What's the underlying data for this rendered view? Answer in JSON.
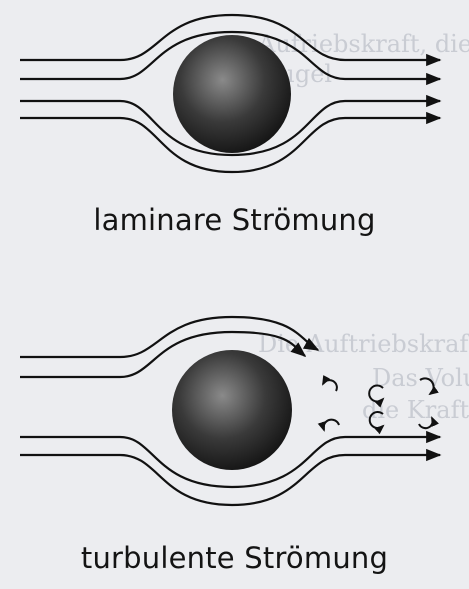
{
  "captions": {
    "laminar": "laminare Strömung",
    "turbulent": "turbulente Strömung"
  },
  "colors": {
    "background": "#ecedf0",
    "ink": "#111111",
    "sphere_highlight": "#8a8a8a",
    "sphere_shadow": "#141414"
  },
  "icons": {
    "sphere": "dark-shaded-sphere",
    "arrow": "flow-arrow",
    "eddy": "vortex-swirl"
  },
  "background_text": [
    "Aufriebskraft, die Reibung",
    "Kugel",
    "Die Auftriebskraft entfern",
    "Das Volume",
    "die Kraft"
  ]
}
